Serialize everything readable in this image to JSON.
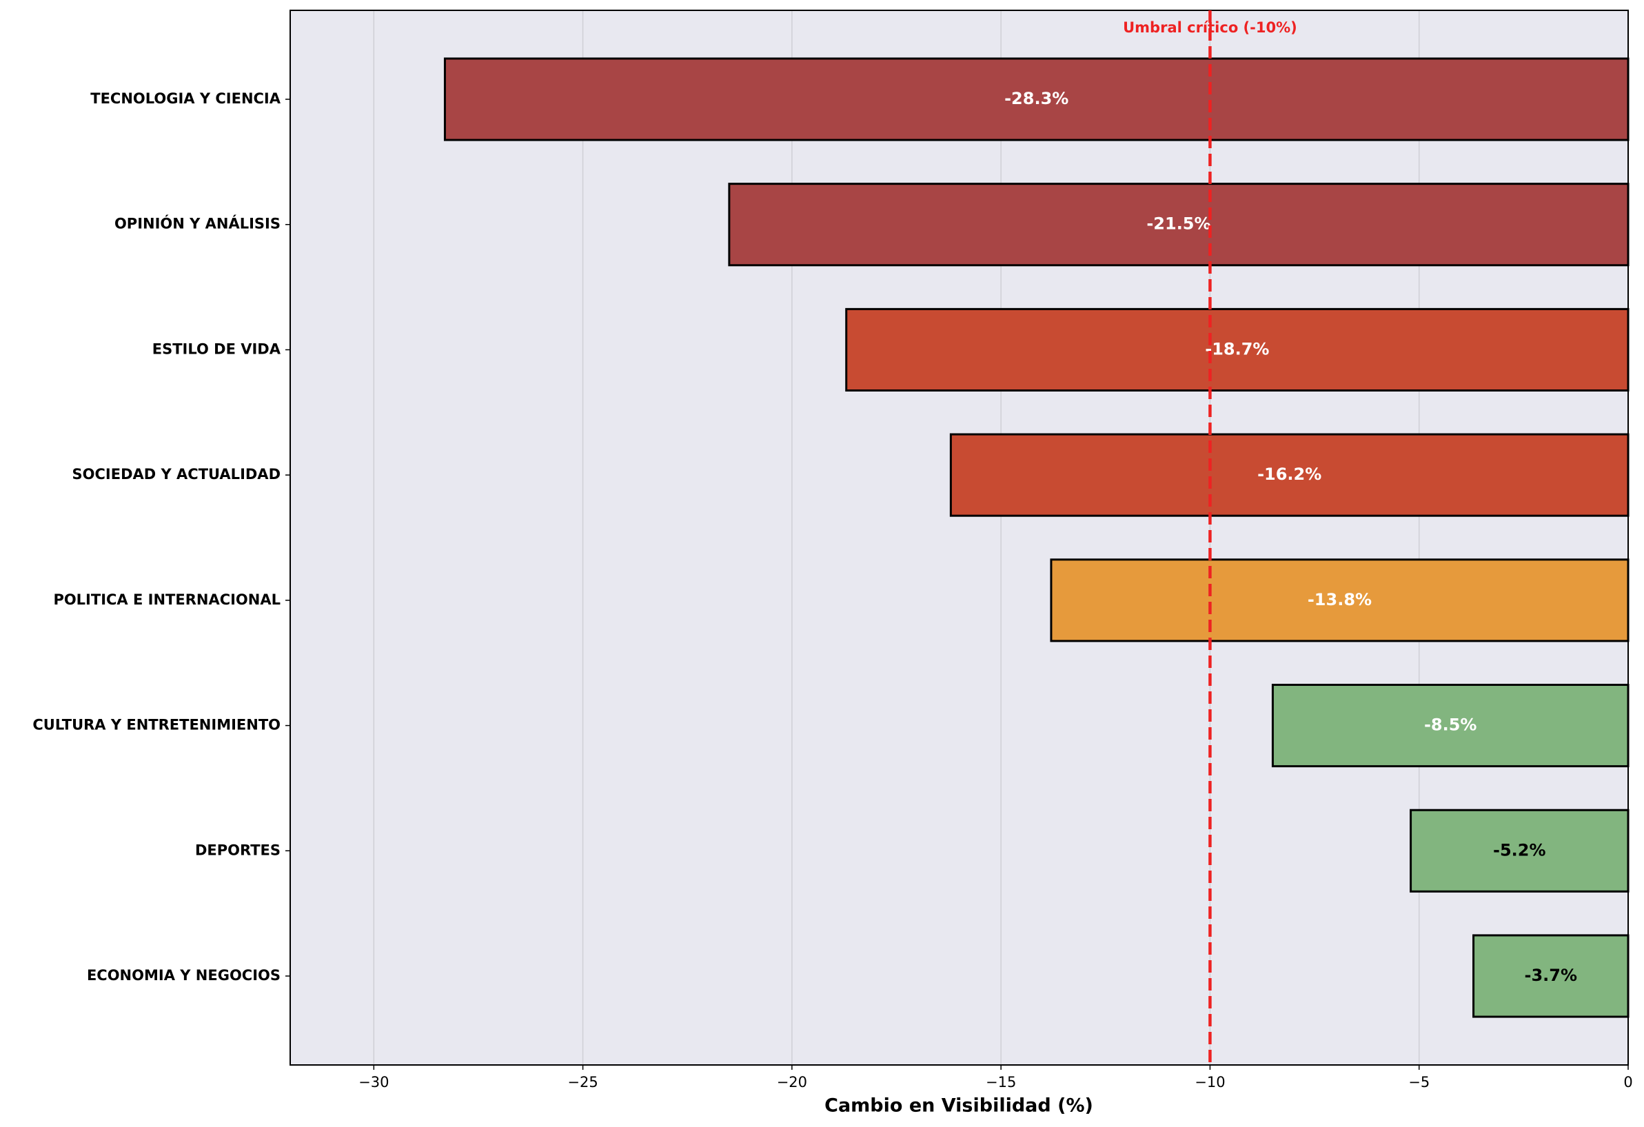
{
  "chart_data": {
    "type": "barh",
    "x_label": "Cambio en Visibilidad (%)",
    "categories": [
      "TECNOLOGIA Y CIENCIA",
      "OPINIÓN Y ANÁLISIS",
      "ESTILO DE VIDA",
      "SOCIEDAD Y ACTUALIDAD",
      "POLITICA E INTERNACIONAL",
      "CULTURA Y ENTRETENIMIENTO",
      "DEPORTES",
      "ECONOMIA Y NEGOCIOS"
    ],
    "values": [
      -28.3,
      -21.5,
      -18.7,
      -16.2,
      -13.8,
      -8.5,
      -5.2,
      -3.7
    ],
    "value_labels": [
      "-28.3%",
      "-21.5%",
      "-18.7%",
      "-16.2%",
      "-13.8%",
      "-8.5%",
      "-5.2%",
      "-3.7%"
    ],
    "colors": [
      "#a84545",
      "#a84545",
      "#c84b32",
      "#c84b32",
      "#e69a3c",
      "#82b57f",
      "#82b57f",
      "#82b57f"
    ],
    "label_colors": [
      "#ffffff",
      "#ffffff",
      "#ffffff",
      "#ffffff",
      "#ffffff",
      "#ffffff",
      "#000000",
      "#000000"
    ],
    "xlim": [
      -32,
      0
    ],
    "xticks": [
      {
        "value": -30,
        "label": "−30"
      },
      {
        "value": -25,
        "label": "−25"
      },
      {
        "value": -20,
        "label": "−20"
      },
      {
        "value": -15,
        "label": "−15"
      },
      {
        "value": -10,
        "label": "−10"
      },
      {
        "value": -5,
        "label": "−5"
      },
      0
    ],
    "grid": true,
    "threshold": -10,
    "threshold_label": "Umbral crítico (-10%)",
    "threshold_color": "#ee2222"
  }
}
